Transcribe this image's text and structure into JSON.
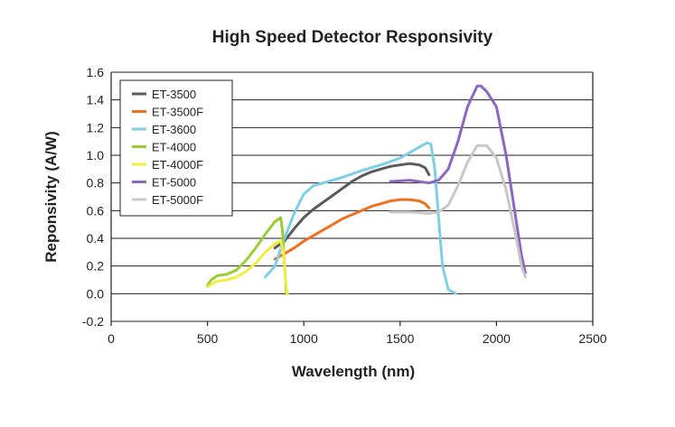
{
  "chart_data": {
    "type": "line",
    "title": "High Speed Detector Responsivity",
    "xlabel": "Wavelength (nm)",
    "ylabel": "Reponsivity (A/W)",
    "xlim": [
      0,
      2500
    ],
    "ylim": [
      -0.2,
      1.6
    ],
    "xticks": [
      0,
      500,
      1000,
      1500,
      2000,
      2500
    ],
    "yticks": [
      -0.2,
      0.0,
      0.2,
      0.4,
      0.6,
      0.8,
      1.0,
      1.2,
      1.4,
      1.6
    ],
    "ytick_labels": [
      "-0.2",
      "0.0",
      "0.2",
      "0.4",
      "0.6",
      "0.8",
      "1.0",
      "1.2",
      "1.4",
      "1.6"
    ],
    "xtick_labels": [
      "0",
      "500",
      "1000",
      "1500",
      "2000",
      "2500"
    ],
    "grid": "horizontal",
    "legend_position": "top-left",
    "series": [
      {
        "name": "ET-3500",
        "color": "#5a5a5a",
        "points": [
          [
            850,
            0.33
          ],
          [
            900,
            0.38
          ],
          [
            950,
            0.47
          ],
          [
            1000,
            0.55
          ],
          [
            1050,
            0.61
          ],
          [
            1100,
            0.66
          ],
          [
            1150,
            0.71
          ],
          [
            1200,
            0.76
          ],
          [
            1250,
            0.81
          ],
          [
            1300,
            0.85
          ],
          [
            1350,
            0.88
          ],
          [
            1400,
            0.9
          ],
          [
            1450,
            0.92
          ],
          [
            1500,
            0.93
          ],
          [
            1550,
            0.94
          ],
          [
            1600,
            0.93
          ],
          [
            1630,
            0.91
          ],
          [
            1650,
            0.86
          ]
        ]
      },
      {
        "name": "ET-3500F",
        "color": "#f07020",
        "points": [
          [
            850,
            0.25
          ],
          [
            900,
            0.29
          ],
          [
            950,
            0.33
          ],
          [
            1000,
            0.38
          ],
          [
            1050,
            0.42
          ],
          [
            1100,
            0.46
          ],
          [
            1150,
            0.5
          ],
          [
            1200,
            0.54
          ],
          [
            1250,
            0.57
          ],
          [
            1300,
            0.6
          ],
          [
            1350,
            0.63
          ],
          [
            1400,
            0.65
          ],
          [
            1450,
            0.67
          ],
          [
            1500,
            0.68
          ],
          [
            1550,
            0.68
          ],
          [
            1600,
            0.67
          ],
          [
            1630,
            0.65
          ],
          [
            1650,
            0.62
          ]
        ]
      },
      {
        "name": "ET-3600",
        "color": "#7dcfe6",
        "points": [
          [
            800,
            0.12
          ],
          [
            850,
            0.2
          ],
          [
            900,
            0.4
          ],
          [
            950,
            0.58
          ],
          [
            1000,
            0.72
          ],
          [
            1050,
            0.78
          ],
          [
            1100,
            0.8
          ],
          [
            1200,
            0.84
          ],
          [
            1300,
            0.89
          ],
          [
            1400,
            0.93
          ],
          [
            1500,
            0.98
          ],
          [
            1550,
            1.02
          ],
          [
            1600,
            1.06
          ],
          [
            1640,
            1.09
          ],
          [
            1660,
            1.08
          ],
          [
            1680,
            0.9
          ],
          [
            1700,
            0.55
          ],
          [
            1720,
            0.2
          ],
          [
            1750,
            0.03
          ],
          [
            1790,
            0.0
          ]
        ]
      },
      {
        "name": "ET-4000",
        "color": "#9acd32",
        "points": [
          [
            500,
            0.06
          ],
          [
            520,
            0.1
          ],
          [
            550,
            0.13
          ],
          [
            600,
            0.14
          ],
          [
            650,
            0.17
          ],
          [
            700,
            0.24
          ],
          [
            750,
            0.33
          ],
          [
            800,
            0.43
          ],
          [
            850,
            0.52
          ],
          [
            880,
            0.55
          ],
          [
            890,
            0.45
          ],
          [
            900,
            0.2
          ],
          [
            910,
            0.0
          ]
        ]
      },
      {
        "name": "ET-4000F",
        "color": "#f2ee40",
        "points": [
          [
            500,
            0.05
          ],
          [
            550,
            0.09
          ],
          [
            600,
            0.1
          ],
          [
            650,
            0.12
          ],
          [
            700,
            0.16
          ],
          [
            750,
            0.22
          ],
          [
            800,
            0.3
          ],
          [
            850,
            0.36
          ],
          [
            880,
            0.38
          ],
          [
            895,
            0.3
          ],
          [
            905,
            0.1
          ],
          [
            915,
            0.0
          ]
        ]
      },
      {
        "name": "ET-5000",
        "color": "#8e65c0",
        "points": [
          [
            1450,
            0.81
          ],
          [
            1550,
            0.82
          ],
          [
            1650,
            0.8
          ],
          [
            1700,
            0.82
          ],
          [
            1750,
            0.9
          ],
          [
            1800,
            1.1
          ],
          [
            1850,
            1.35
          ],
          [
            1900,
            1.5
          ],
          [
            1920,
            1.5
          ],
          [
            1950,
            1.46
          ],
          [
            2000,
            1.35
          ],
          [
            2050,
            1.0
          ],
          [
            2100,
            0.55
          ],
          [
            2130,
            0.28
          ],
          [
            2150,
            0.15
          ]
        ]
      },
      {
        "name": "ET-5000F",
        "color": "#c8c8c8",
        "points": [
          [
            1450,
            0.59
          ],
          [
            1550,
            0.59
          ],
          [
            1650,
            0.58
          ],
          [
            1700,
            0.59
          ],
          [
            1750,
            0.64
          ],
          [
            1800,
            0.78
          ],
          [
            1850,
            0.95
          ],
          [
            1900,
            1.07
          ],
          [
            1950,
            1.07
          ],
          [
            2000,
            0.98
          ],
          [
            2050,
            0.75
          ],
          [
            2100,
            0.42
          ],
          [
            2130,
            0.2
          ],
          [
            2150,
            0.12
          ]
        ]
      }
    ]
  }
}
